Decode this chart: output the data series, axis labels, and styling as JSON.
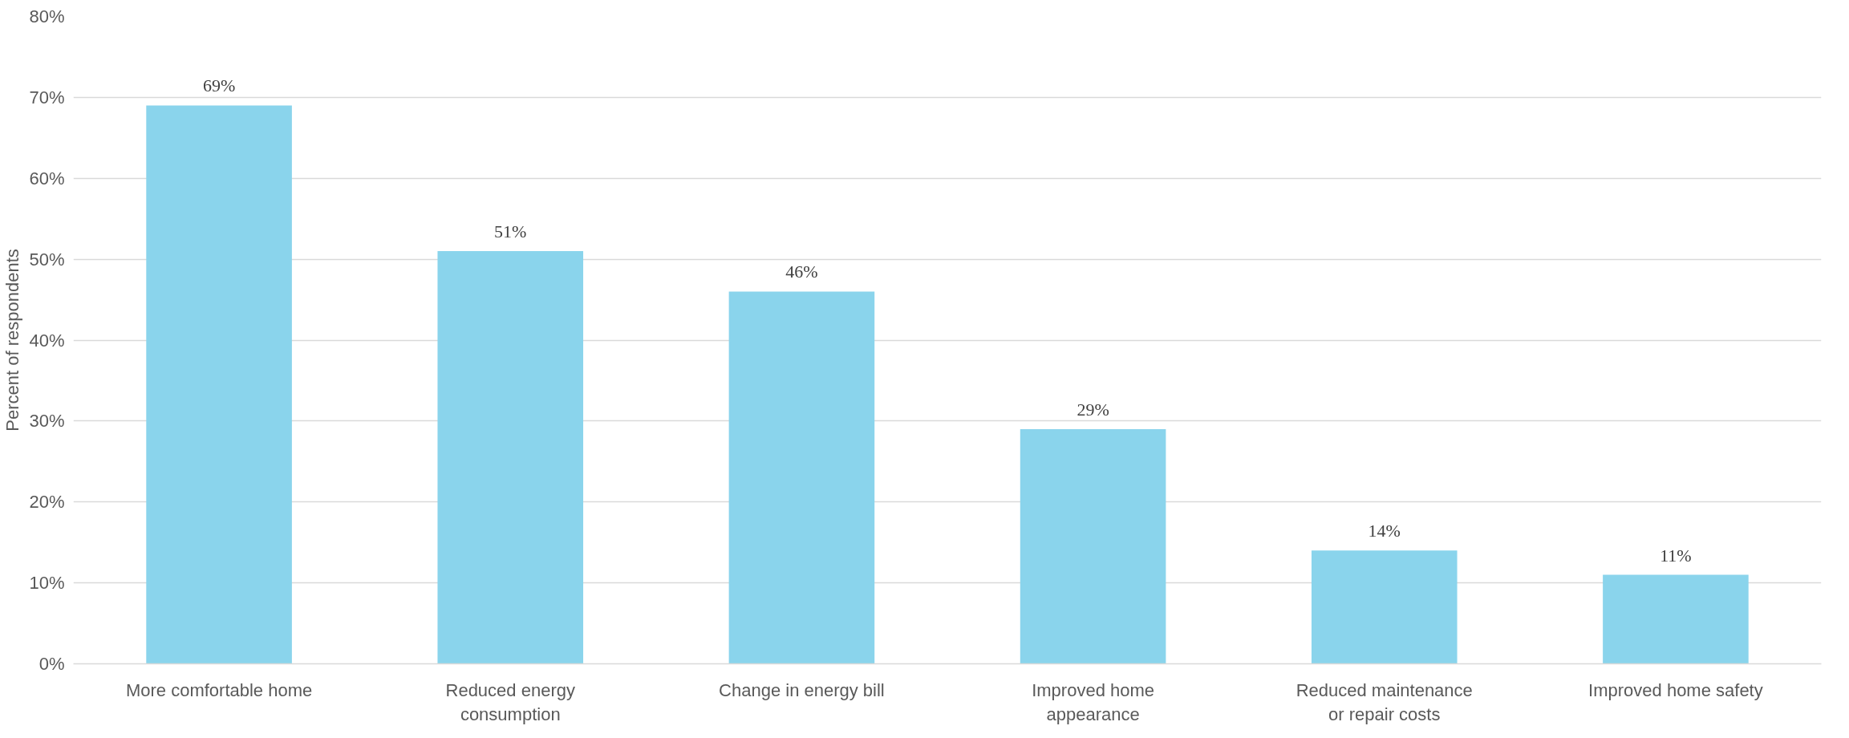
{
  "chart_data": {
    "type": "bar",
    "ylabel": "Percent of respondents",
    "categories": [
      "More comfortable home",
      "Reduced energy consumption",
      "Change in energy bill",
      "Improved home appearance",
      "Reduced maintenance or repair costs",
      "Improved home safety"
    ],
    "values": [
      69,
      51,
      46,
      29,
      14,
      11
    ],
    "value_labels": [
      "69%",
      "51%",
      "46%",
      "29%",
      "14%",
      "11%"
    ],
    "color": "#8ad4ec",
    "ylim": [
      0,
      80
    ],
    "yticks": [
      {
        "value": 0,
        "label": "0%"
      },
      {
        "value": 10,
        "label": "10%"
      },
      {
        "value": 20,
        "label": "20%"
      },
      {
        "value": 30,
        "label": "30%"
      },
      {
        "value": 40,
        "label": "40%"
      },
      {
        "value": 50,
        "label": "50%"
      },
      {
        "value": 60,
        "label": "60%"
      },
      {
        "value": 70,
        "label": "70%"
      },
      {
        "value": 80,
        "label": "80%"
      }
    ],
    "grid": "y"
  }
}
